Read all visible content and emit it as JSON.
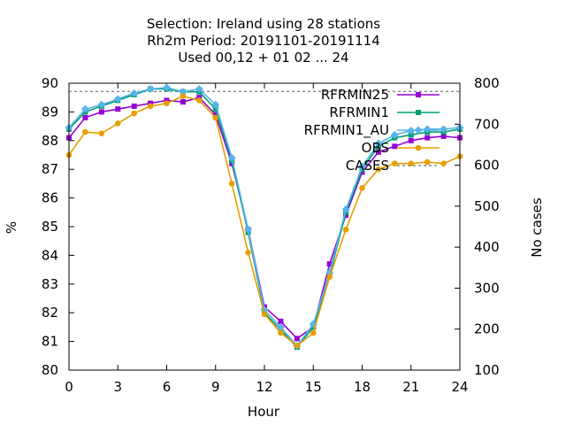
{
  "chart_data": {
    "type": "line",
    "title_lines": [
      "Selection: Ireland using    28 stations",
      "Rh2m   Period: 20191101-20191114",
      "Used  00,12  + 01 02 ... 24"
    ],
    "xlabel": "Hour",
    "ylabel": "%",
    "y2label": "No cases",
    "xlim": [
      0,
      24
    ],
    "ylim": [
      80,
      90
    ],
    "y2lim": [
      100,
      800
    ],
    "xticks": [
      "0",
      "3",
      "6",
      "9",
      "12",
      "15",
      "18",
      "21",
      "24"
    ],
    "yticks": [
      "80",
      "81",
      "82",
      "83",
      "84",
      "85",
      "86",
      "87",
      "88",
      "89",
      "90"
    ],
    "y2ticks": [
      "100",
      "200",
      "300",
      "400",
      "500",
      "600",
      "700",
      "800"
    ],
    "legend_position": "top-right",
    "x": [
      0,
      1,
      2,
      3,
      4,
      5,
      6,
      7,
      8,
      9,
      10,
      11,
      12,
      13,
      14,
      15,
      16,
      17,
      18,
      19,
      20,
      21,
      22,
      23,
      24
    ],
    "series": [
      {
        "name": "RFRMIN25",
        "color": "#9400d3",
        "marker": "square",
        "values": [
          88.1,
          88.8,
          89.0,
          89.1,
          89.2,
          89.3,
          89.4,
          89.35,
          89.5,
          88.9,
          87.2,
          84.9,
          82.2,
          81.7,
          81.1,
          81.5,
          83.7,
          85.4,
          86.9,
          87.6,
          87.8,
          88.0,
          88.1,
          88.15,
          88.1
        ]
      },
      {
        "name": "RFRMIN1",
        "color": "#009e73",
        "marker": "square",
        "values": [
          88.4,
          89.0,
          89.2,
          89.4,
          89.6,
          89.8,
          89.8,
          89.7,
          89.7,
          89.1,
          87.3,
          84.8,
          82.0,
          81.4,
          80.8,
          81.5,
          83.3,
          85.5,
          87.0,
          87.8,
          88.1,
          88.2,
          88.3,
          88.3,
          88.4
        ]
      },
      {
        "name": "RFRMIN1_AU",
        "color": "#56b4e9",
        "marker": "diamond",
        "values": [
          88.45,
          89.1,
          89.25,
          89.45,
          89.65,
          89.8,
          89.85,
          89.7,
          89.8,
          89.25,
          87.4,
          84.9,
          82.1,
          81.5,
          80.85,
          81.6,
          83.4,
          85.6,
          87.1,
          87.9,
          88.2,
          88.35,
          88.4,
          88.4,
          88.45
        ]
      },
      {
        "name": "OBS",
        "color": "#e69f00",
        "marker": "circle",
        "values": [
          87.5,
          88.3,
          88.25,
          88.6,
          88.95,
          89.2,
          89.3,
          89.55,
          89.4,
          88.8,
          86.5,
          84.1,
          81.95,
          81.3,
          80.85,
          81.3,
          83.25,
          84.9,
          86.35,
          87.0,
          87.2,
          87.2,
          87.25,
          87.2,
          87.45
        ]
      },
      {
        "name": "CASES",
        "color": "#888888",
        "marker": "none",
        "dashed": true,
        "axis": "y2",
        "values": [
          780,
          780,
          780,
          780,
          780,
          780,
          780,
          780,
          780,
          780,
          780,
          780,
          780,
          780,
          780,
          780,
          780,
          780,
          780,
          780,
          780,
          780,
          780,
          780,
          780
        ]
      }
    ]
  }
}
